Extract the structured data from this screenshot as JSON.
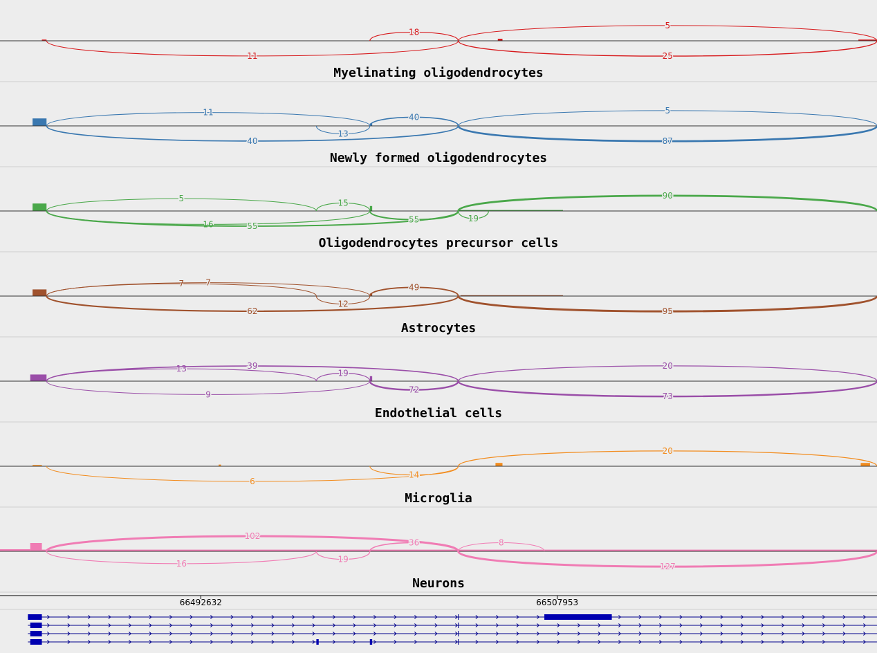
{
  "chart_data": {
    "type": "sashimi",
    "xlim": [
      66484000,
      66521700
    ],
    "ticks": [
      {
        "value": 66492632,
        "label": "66492632"
      },
      {
        "value": 66507953,
        "label": "66507953"
      }
    ],
    "tracks": [
      {
        "name": "Myelinating oligodendrocytes",
        "color": "#d7191c",
        "coverage": [
          [
            66485800,
            66486000,
            0.15
          ],
          [
            66505400,
            66505600,
            0.25
          ],
          [
            66520900,
            66521700,
            0.15
          ]
        ],
        "junctions": [
          {
            "start": 66486000,
            "end": 66503700,
            "count": "11",
            "side": "below"
          },
          {
            "start": 66499900,
            "end": 66503700,
            "count": "18",
            "side": "above"
          },
          {
            "start": 66503700,
            "end": 66521700,
            "count": "5",
            "side": "above"
          },
          {
            "start": 66503700,
            "end": 66521700,
            "count": "25",
            "side": "below"
          }
        ]
      },
      {
        "name": "Newly formed oligodendrocytes",
        "color": "#3a78b0",
        "coverage": [
          [
            66485400,
            66486000,
            0.9
          ],
          [
            66499900,
            66500000,
            0.3
          ]
        ],
        "junctions": [
          {
            "start": 66486000,
            "end": 66499900,
            "count": "11",
            "side": "above"
          },
          {
            "start": 66486000,
            "end": 66503700,
            "count": "40",
            "side": "below"
          },
          {
            "start": 66497600,
            "end": 66499900,
            "count": "13",
            "side": "below"
          },
          {
            "start": 66499900,
            "end": 66503700,
            "count": "40",
            "side": "above"
          },
          {
            "start": 66503700,
            "end": 66521700,
            "count": "5",
            "side": "above"
          },
          {
            "start": 66503700,
            "end": 66521700,
            "count": "87",
            "side": "below"
          }
        ]
      },
      {
        "name": "Oligodendrocytes precursor cells",
        "color": "#4aa84a",
        "coverage": [
          [
            66485400,
            66486000,
            0.9
          ],
          [
            66499900,
            66500000,
            0.6
          ],
          [
            66503700,
            66508200,
            0.12
          ]
        ],
        "junctions": [
          {
            "start": 66486000,
            "end": 66497600,
            "count": "5",
            "side": "above"
          },
          {
            "start": 66486000,
            "end": 66499900,
            "count": "16",
            "side": "below"
          },
          {
            "start": 66486000,
            "end": 66503700,
            "count": "55",
            "side": "below"
          },
          {
            "start": 66497600,
            "end": 66499900,
            "count": "15",
            "side": "above"
          },
          {
            "start": 66499900,
            "end": 66503700,
            "count": "55",
            "side": "below"
          },
          {
            "start": 66503700,
            "end": 66505000,
            "count": "19",
            "side": "below"
          },
          {
            "start": 66503700,
            "end": 66521700,
            "count": "90",
            "side": "above"
          }
        ]
      },
      {
        "name": "Astrocytes",
        "color": "#a0522d",
        "coverage": [
          [
            66485400,
            66486000,
            0.8
          ],
          [
            66499900,
            66500000,
            0.3
          ],
          [
            66503800,
            66508200,
            0.1
          ]
        ],
        "junctions": [
          {
            "start": 66486000,
            "end": 66497600,
            "count": "7",
            "side": "above"
          },
          {
            "start": 66486000,
            "end": 66499900,
            "count": "7",
            "side": "above"
          },
          {
            "start": 66486000,
            "end": 66503700,
            "count": "62",
            "side": "below"
          },
          {
            "start": 66497600,
            "end": 66499900,
            "count": "12",
            "side": "below"
          },
          {
            "start": 66499900,
            "end": 66503700,
            "count": "49",
            "side": "above"
          },
          {
            "start": 66503700,
            "end": 66521700,
            "count": "95",
            "side": "below"
          }
        ]
      },
      {
        "name": "Endothelial cells",
        "color": "#9a4ea8",
        "coverage": [
          [
            66485300,
            66486000,
            0.8
          ],
          [
            66499900,
            66500000,
            0.6
          ]
        ],
        "junctions": [
          {
            "start": 66486000,
            "end": 66497600,
            "count": "13",
            "side": "above"
          },
          {
            "start": 66486000,
            "end": 66503700,
            "count": "39",
            "side": "above"
          },
          {
            "start": 66486000,
            "end": 66499900,
            "count": "9",
            "side": "below"
          },
          {
            "start": 66497600,
            "end": 66499900,
            "count": "19",
            "side": "above"
          },
          {
            "start": 66499900,
            "end": 66503700,
            "count": "72",
            "side": "below"
          },
          {
            "start": 66503700,
            "end": 66521700,
            "count": "20",
            "side": "above"
          },
          {
            "start": 66503700,
            "end": 66521700,
            "count": "73",
            "side": "below"
          }
        ]
      },
      {
        "name": "Microglia",
        "color": "#f28c1e",
        "coverage": [
          [
            66485400,
            66485800,
            0.15
          ],
          [
            66493400,
            66493500,
            0.2
          ],
          [
            66505300,
            66505600,
            0.4
          ],
          [
            66521000,
            66521400,
            0.4
          ]
        ],
        "junctions": [
          {
            "start": 66486000,
            "end": 66503700,
            "count": "6",
            "side": "below"
          },
          {
            "start": 66499900,
            "end": 66503700,
            "count": "14",
            "side": "below"
          },
          {
            "start": 66503700,
            "end": 66521700,
            "count": "20",
            "side": "above"
          }
        ]
      },
      {
        "name": "Neurons",
        "color": "#f07cb4",
        "coverage": [
          [
            66484000,
            66485300,
            0.25
          ],
          [
            66485300,
            66485800,
            1.0
          ],
          [
            66485800,
            66521700,
            0.2
          ]
        ],
        "junctions": [
          {
            "start": 66486000,
            "end": 66503700,
            "count": "102",
            "side": "above"
          },
          {
            "start": 66486000,
            "end": 66497600,
            "count": "16",
            "side": "below"
          },
          {
            "start": 66497600,
            "end": 66499900,
            "count": "19",
            "side": "below"
          },
          {
            "start": 66499900,
            "end": 66503700,
            "count": "36",
            "side": "above"
          },
          {
            "start": 66503700,
            "end": 66507400,
            "count": "8",
            "side": "above"
          },
          {
            "start": 66503700,
            "end": 66521700,
            "count": "127",
            "side": "below"
          }
        ]
      }
    ],
    "transcripts": [
      {
        "exons": [
          [
            66485200,
            66485800
          ],
          [
            66507400,
            66510300
          ]
        ],
        "marks": [
          66503700
        ]
      },
      {
        "exons": [
          [
            66485300,
            66485800
          ]
        ],
        "marks": [
          66503700
        ]
      },
      {
        "exons": [
          [
            66485300,
            66485800
          ]
        ],
        "marks": [
          66503700
        ]
      },
      {
        "exons": [
          [
            66485300,
            66485800
          ],
          [
            66497600,
            66497700
          ],
          [
            66499900,
            66500000
          ]
        ],
        "marks": [
          66503700
        ]
      }
    ]
  }
}
